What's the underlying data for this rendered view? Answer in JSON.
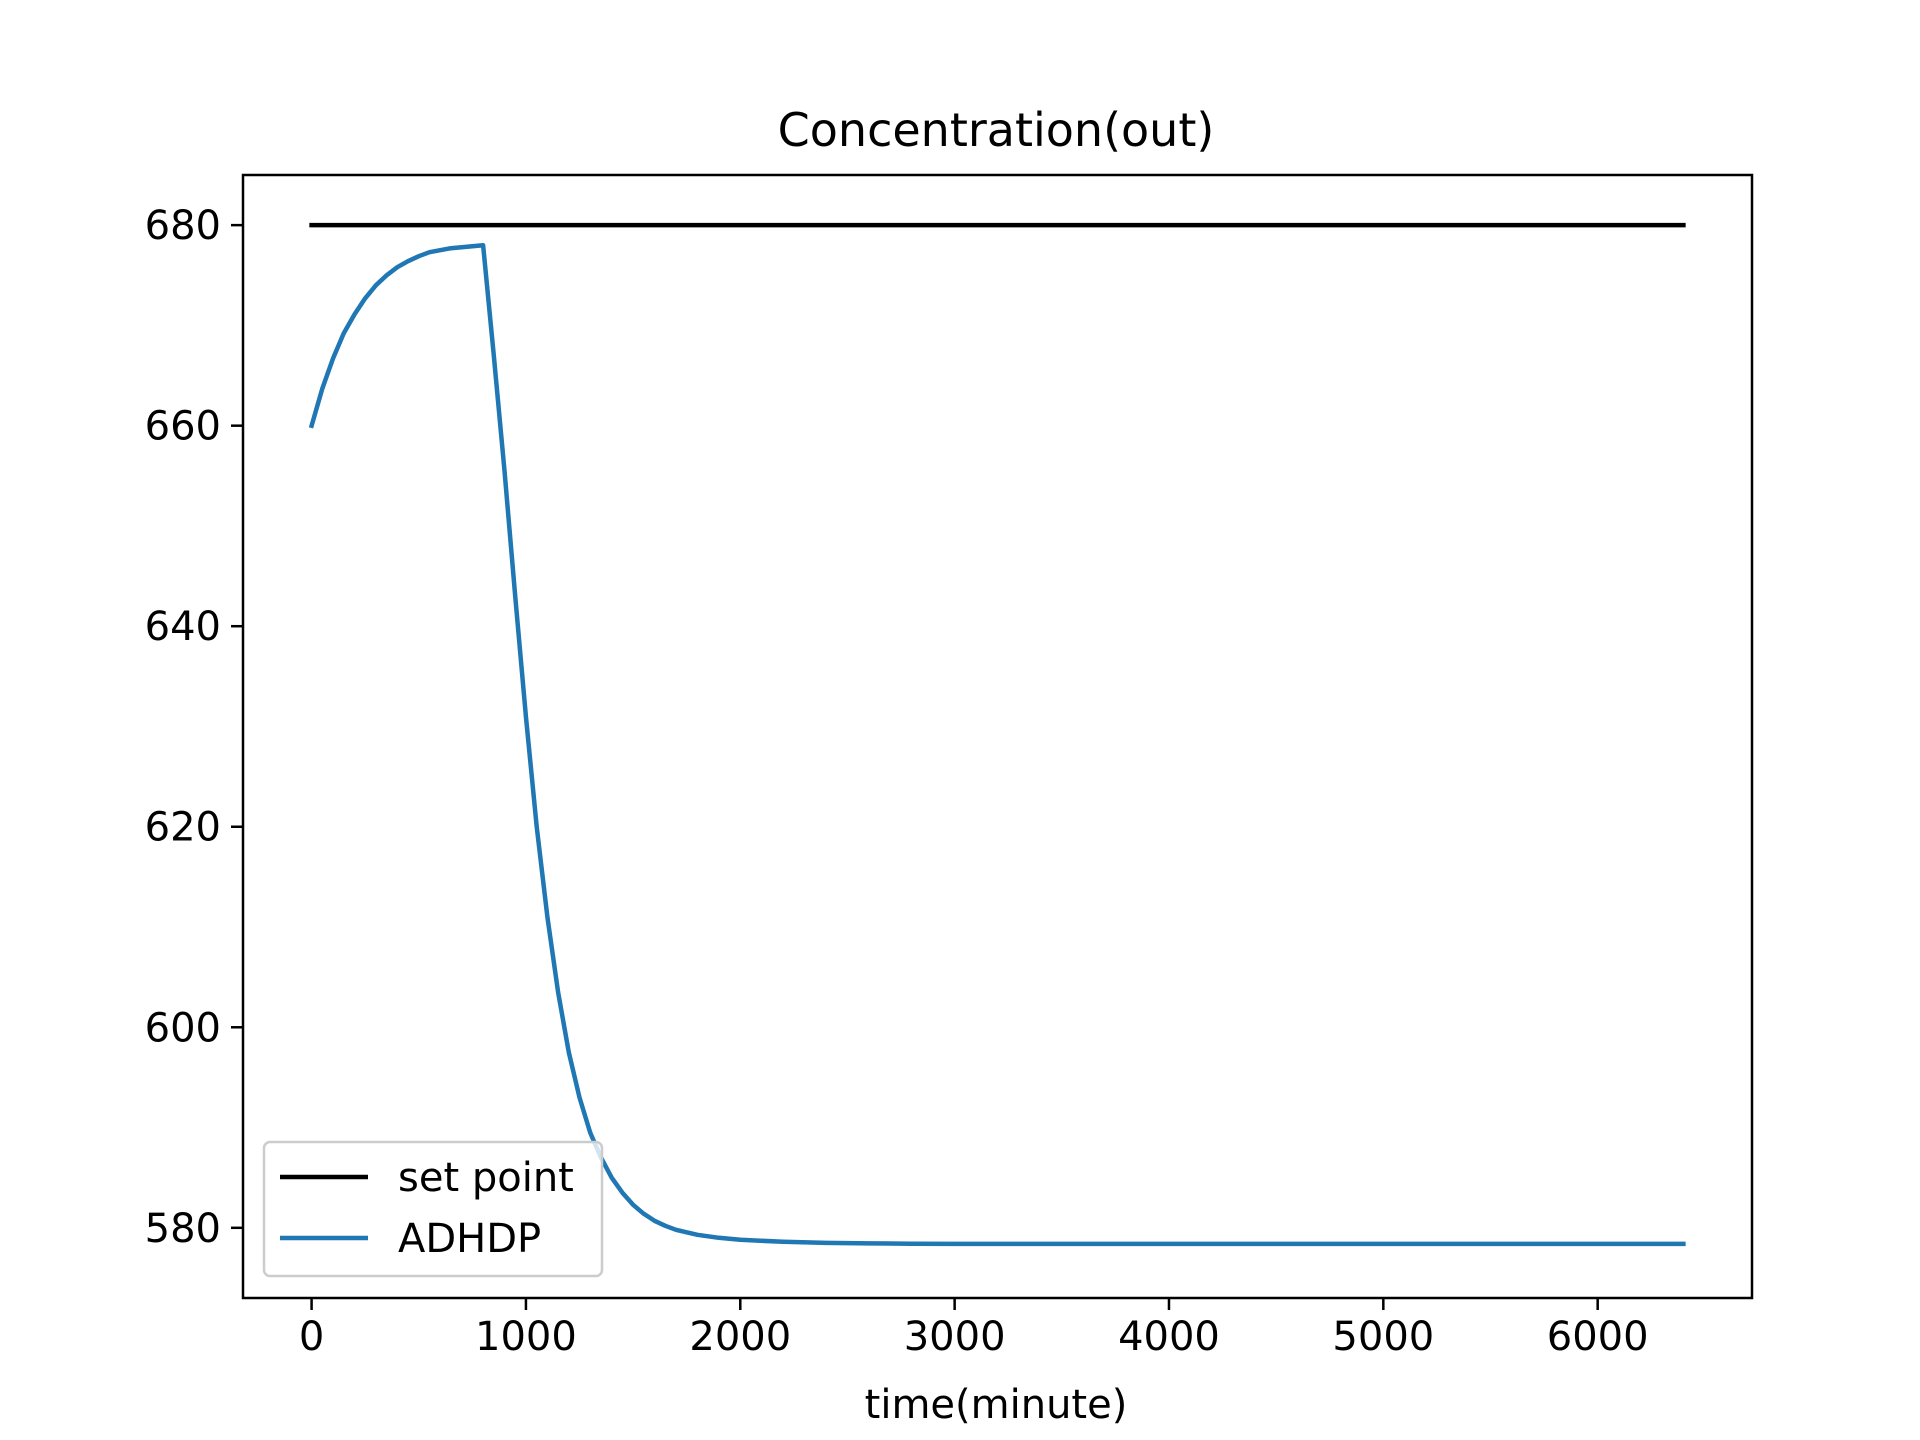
{
  "chart_data": {
    "type": "line",
    "title": "Concentration(out)",
    "xlabel": "time(minute)",
    "ylabel": "",
    "xlim": [
      -320,
      6720
    ],
    "ylim": [
      573,
      685
    ],
    "x_ticks": [
      0,
      1000,
      2000,
      3000,
      4000,
      5000,
      6000
    ],
    "y_ticks": [
      580,
      600,
      620,
      640,
      660,
      680
    ],
    "grid": false,
    "legend_position": "lower-left",
    "series": [
      {
        "name": "set point",
        "color": "#000000",
        "x": [
          0,
          6400
        ],
        "y": [
          680,
          680
        ]
      },
      {
        "name": "ADHDP",
        "color": "#1f77b4",
        "x": [
          0,
          50,
          100,
          150,
          200,
          250,
          300,
          350,
          400,
          450,
          500,
          550,
          600,
          650,
          700,
          750,
          800,
          850,
          900,
          950,
          1000,
          1050,
          1100,
          1150,
          1200,
          1250,
          1300,
          1350,
          1400,
          1450,
          1500,
          1550,
          1600,
          1650,
          1700,
          1800,
          1900,
          2000,
          2200,
          2400,
          2600,
          2800,
          3000,
          3500,
          4000,
          5000,
          6000,
          6400
        ],
        "y": [
          660.0,
          663.7,
          666.7,
          669.2,
          671.1,
          672.7,
          674.0,
          675.0,
          675.8,
          676.4,
          676.9,
          677.3,
          677.5,
          677.7,
          677.8,
          677.9,
          678.0,
          667.0,
          655.5,
          643.0,
          631.0,
          620.0,
          611.0,
          603.5,
          597.5,
          593.0,
          589.5,
          587.0,
          585.0,
          583.5,
          582.3,
          581.4,
          580.7,
          580.2,
          579.8,
          579.3,
          579.0,
          578.8,
          578.6,
          578.5,
          578.45,
          578.42,
          578.4,
          578.4,
          578.4,
          578.4,
          578.4,
          578.4
        ]
      }
    ]
  }
}
